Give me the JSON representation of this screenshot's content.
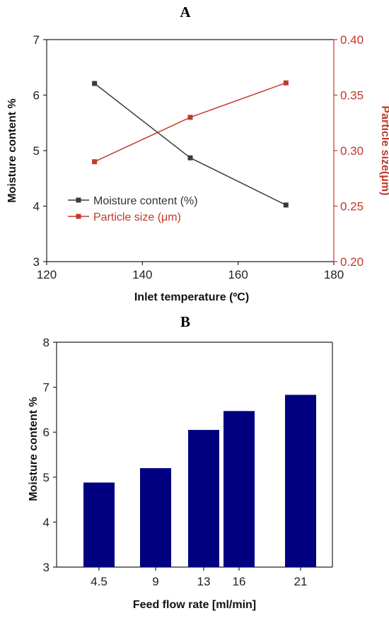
{
  "chart_data": [
    {
      "panel": "A",
      "type": "line",
      "xlabel": "Inlet temperature (ºC)",
      "xlim": [
        120,
        180
      ],
      "xticks": [
        120,
        140,
        160,
        180
      ],
      "ylabel_left": "Moisture content %",
      "ylim_left": [
        3,
        7
      ],
      "yticks_left": [
        3,
        4,
        5,
        6,
        7
      ],
      "ylabel_right": "Particle size(μm)",
      "ylim_right": [
        0.2,
        0.4
      ],
      "yticks_right": [
        "0.20",
        "0.25",
        "0.30",
        "0.35",
        "0.40"
      ],
      "legend_position": "center-left",
      "grid": false,
      "series": [
        {
          "name": "Moisture content (%)",
          "axis": "left",
          "color": "#3a3a3a",
          "x": [
            130,
            150,
            170
          ],
          "y": [
            6.21,
            4.87,
            4.02
          ]
        },
        {
          "name": "Particle size (μm)",
          "axis": "right",
          "color": "#c0392b",
          "x": [
            130,
            150,
            170
          ],
          "y": [
            0.29,
            0.33,
            0.361
          ]
        }
      ]
    },
    {
      "panel": "B",
      "type": "bar",
      "xlabel": "Feed flow rate [ml/min]",
      "ylabel": "Moisture content %",
      "ylim": [
        3,
        8
      ],
      "yticks": [
        3,
        4,
        5,
        6,
        7,
        8
      ],
      "categories": [
        "4.5",
        "9",
        "13",
        "16",
        "21"
      ],
      "values": [
        4.88,
        5.2,
        6.05,
        6.47,
        6.83
      ],
      "bar_color": "#000080",
      "grid": false
    }
  ]
}
